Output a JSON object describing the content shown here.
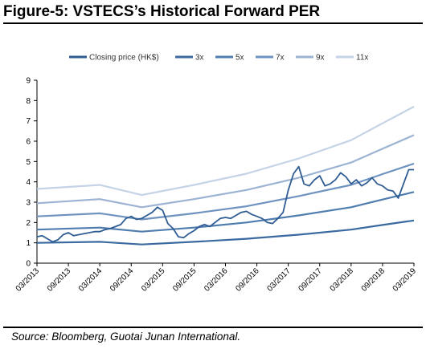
{
  "figure": {
    "title": "Figure-5: VSTECS’s Historical Forward PER",
    "source": "Source: Bloomberg, Guotai Junan International."
  },
  "chart_data": {
    "type": "line",
    "title": "Figure-5: VSTECS’s Historical Forward PER",
    "xlabel": "",
    "ylabel": "",
    "ylim": [
      0,
      9
    ],
    "yticks": [
      "0",
      "1",
      "2",
      "3",
      "4",
      "5",
      "6",
      "7",
      "8",
      "9"
    ],
    "xlim": [
      0,
      72
    ],
    "xticks": [
      "03/2013",
      "09/2013",
      "03/2014",
      "09/2014",
      "03/2015",
      "09/2015",
      "03/2016",
      "09/2016",
      "03/2017",
      "09/2017",
      "03/2018",
      "09/2018",
      "03/2019"
    ],
    "legend_position": "top",
    "grid": false,
    "series": [
      {
        "name": "Closing price (HK$)",
        "color": "#2f5d93",
        "x": [
          0,
          1,
          2,
          3,
          4,
          5,
          6,
          7,
          8,
          9,
          10,
          11,
          12,
          13,
          14,
          15,
          16,
          17,
          18,
          19,
          20,
          21,
          22,
          23,
          24,
          25,
          26,
          27,
          28,
          29,
          30,
          31,
          32,
          33,
          34,
          35,
          36,
          37,
          38,
          39,
          40,
          41,
          42,
          43,
          44,
          45,
          46,
          47,
          48,
          49,
          50,
          51,
          52,
          53,
          54,
          55,
          56,
          57,
          58,
          59,
          60,
          61,
          62,
          63,
          64,
          65,
          66,
          67,
          68,
          69,
          70,
          71,
          72
        ],
        "values": [
          1.3,
          1.35,
          1.2,
          1.05,
          1.15,
          1.4,
          1.5,
          1.35,
          1.4,
          1.45,
          1.5,
          1.55,
          1.55,
          1.65,
          1.7,
          1.8,
          1.9,
          2.2,
          2.3,
          2.15,
          2.2,
          2.35,
          2.5,
          2.75,
          2.6,
          1.95,
          1.7,
          1.3,
          1.25,
          1.45,
          1.6,
          1.8,
          1.9,
          1.8,
          2.0,
          2.2,
          2.25,
          2.2,
          2.35,
          2.5,
          2.55,
          2.4,
          2.3,
          2.2,
          2.0,
          1.95,
          2.2,
          2.5,
          3.6,
          4.4,
          4.75,
          3.9,
          3.8,
          4.1,
          4.3,
          3.8,
          3.9,
          4.1,
          4.45,
          4.25,
          3.9,
          4.1,
          3.8,
          3.95,
          4.2,
          3.9,
          3.8,
          3.6,
          3.55,
          3.2,
          3.9,
          4.6,
          4.6
        ]
      },
      {
        "name": "3x",
        "color": "#3a6aa0",
        "x": [
          0,
          12,
          20,
          30,
          40,
          50,
          60,
          66,
          72
        ],
        "values": [
          1.0,
          1.05,
          0.92,
          1.05,
          1.2,
          1.4,
          1.65,
          1.88,
          2.1
        ]
      },
      {
        "name": "5x",
        "color": "#4f7db0",
        "x": [
          0,
          12,
          20,
          30,
          40,
          50,
          60,
          66,
          72
        ],
        "values": [
          1.65,
          1.75,
          1.55,
          1.75,
          2.0,
          2.35,
          2.75,
          3.13,
          3.5
        ]
      },
      {
        "name": "7x",
        "color": "#6f93c0",
        "x": [
          0,
          12,
          20,
          30,
          40,
          50,
          60,
          66,
          72
        ],
        "values": [
          2.3,
          2.45,
          2.15,
          2.45,
          2.8,
          3.3,
          3.85,
          4.38,
          4.9
        ]
      },
      {
        "name": "9x",
        "color": "#9cb3d3",
        "x": [
          0,
          12,
          20,
          30,
          40,
          50,
          60,
          66,
          72
        ],
        "values": [
          2.95,
          3.15,
          2.75,
          3.15,
          3.6,
          4.2,
          4.95,
          5.63,
          6.3
        ]
      },
      {
        "name": "11x",
        "color": "#c4d3e6",
        "x": [
          0,
          12,
          20,
          30,
          40,
          50,
          60,
          66,
          72
        ],
        "values": [
          3.65,
          3.85,
          3.35,
          3.85,
          4.4,
          5.15,
          6.05,
          6.88,
          7.7
        ]
      }
    ]
  }
}
